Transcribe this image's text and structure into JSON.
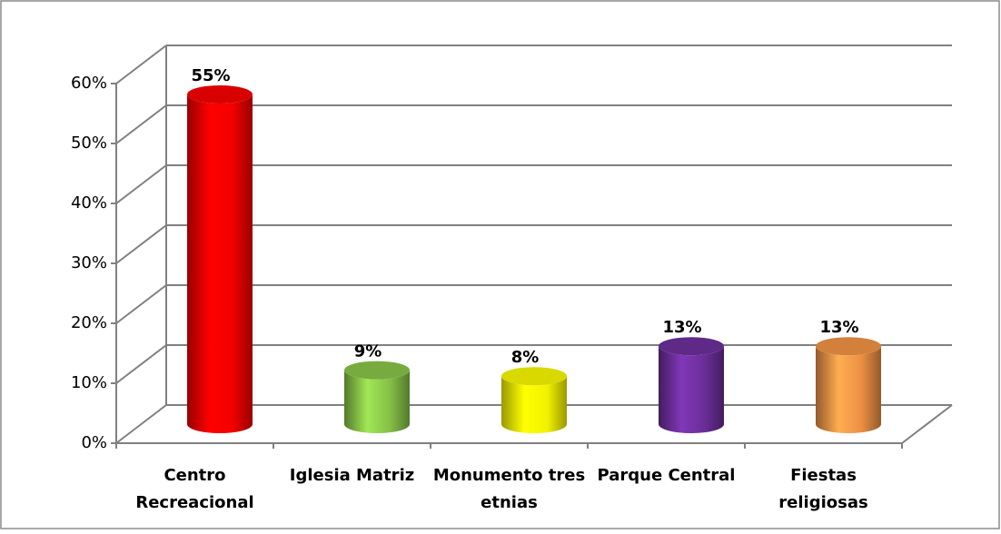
{
  "chart_data": {
    "type": "bar3d",
    "categories": [
      "Centro Recreacional",
      "Iglesia Matriz",
      "Monumento tres etnias",
      "Parque Central",
      "Fiestas religiosas"
    ],
    "values": [
      55,
      9,
      8,
      13,
      13
    ],
    "value_labels": [
      "55%",
      "9%",
      "8%",
      "13%",
      "13%"
    ],
    "colors": [
      "#ff0000",
      "#8cc94a",
      "#ffff00",
      "#7030a0",
      "#f79646"
    ],
    "ylim": [
      0,
      60
    ],
    "yticks": [
      {
        "value": 0,
        "label": "0%"
      },
      {
        "value": 10,
        "label": "10%"
      },
      {
        "value": 20,
        "label": "20%"
      },
      {
        "value": 30,
        "label": "30%"
      },
      {
        "value": 40,
        "label": "40%"
      },
      {
        "value": 50,
        "label": "50%"
      },
      {
        "value": 60,
        "label": "60%"
      }
    ],
    "grid": true
  }
}
